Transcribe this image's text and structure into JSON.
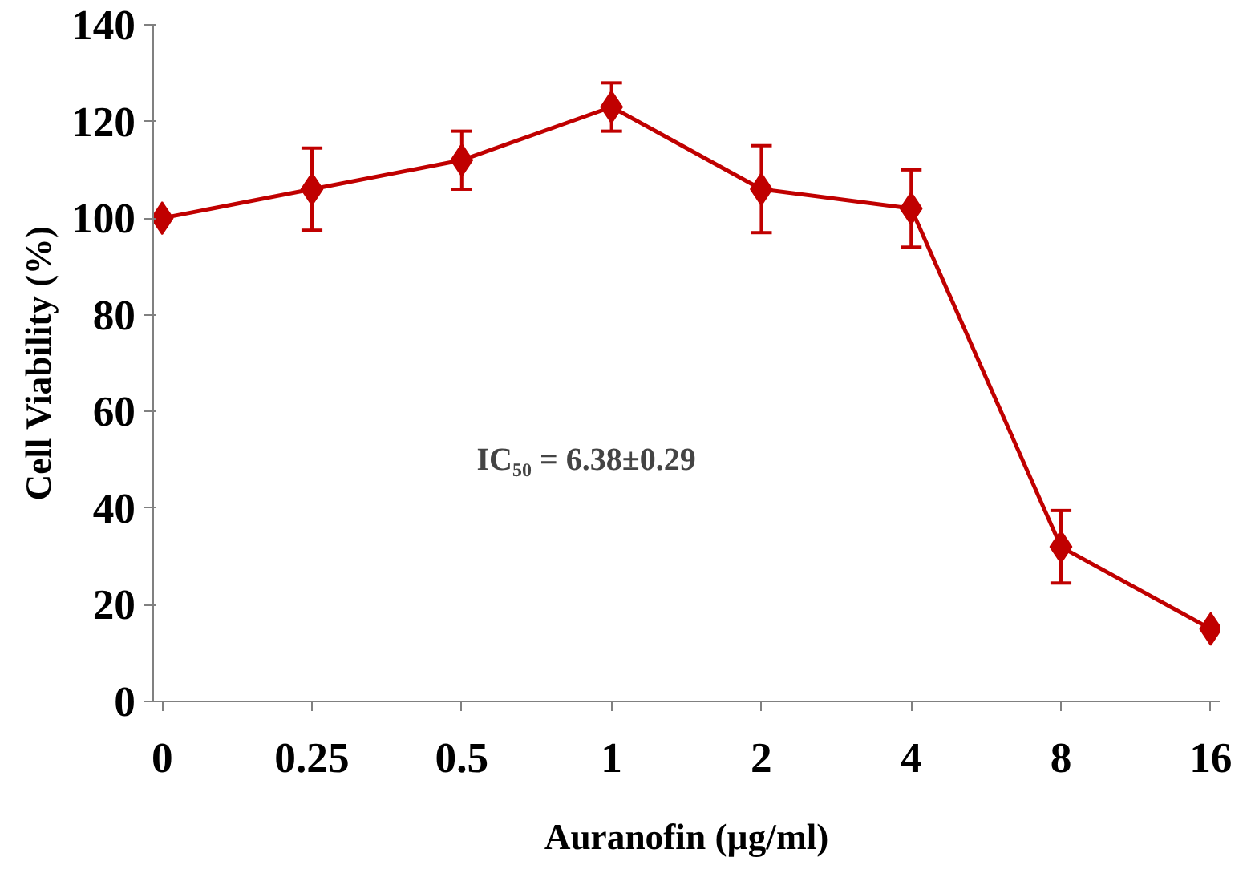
{
  "chart_data": {
    "type": "line",
    "xlabel": "Auranofin (µg/ml)",
    "ylabel": "Cell Viability (%)",
    "categories": [
      "0",
      "0.25",
      "0.5",
      "1",
      "2",
      "4",
      "8",
      "16"
    ],
    "series": [
      {
        "color": "#c00000",
        "values": [
          100,
          106,
          112,
          123,
          106,
          102,
          32,
          15
        ],
        "errors": [
          null,
          8.5,
          6,
          5,
          9,
          8,
          7.5,
          null
        ]
      }
    ],
    "ylim": [
      0,
      140
    ],
    "yticks": [
      0,
      20,
      40,
      60,
      80,
      100,
      120,
      140
    ],
    "grid": false,
    "marker": "diamond",
    "line_style": "solid",
    "annotations": [
      "IC₅₀ = 6.38±0.29"
    ]
  }
}
